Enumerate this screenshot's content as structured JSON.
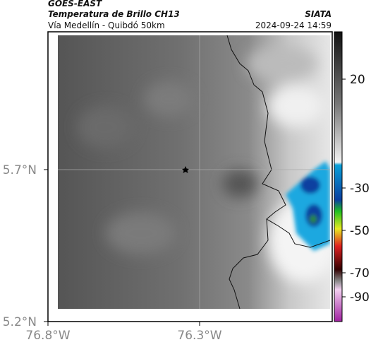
{
  "header": {
    "title": "GOES-EAST",
    "subtitle": "Temperatura de Brillo CH13",
    "source": "SIATA",
    "route": "Vía Medellín - Quibdó 50km",
    "timestamp": "2024-09-24 14:59"
  },
  "axes": {
    "lat_labels": [
      "5.7°N",
      "5.2°N"
    ],
    "lon_labels": [
      "76.8°W",
      "76.3°W"
    ]
  },
  "colorbar": {
    "ticks": [
      20,
      -30,
      -50,
      -70,
      -90
    ]
  }
}
